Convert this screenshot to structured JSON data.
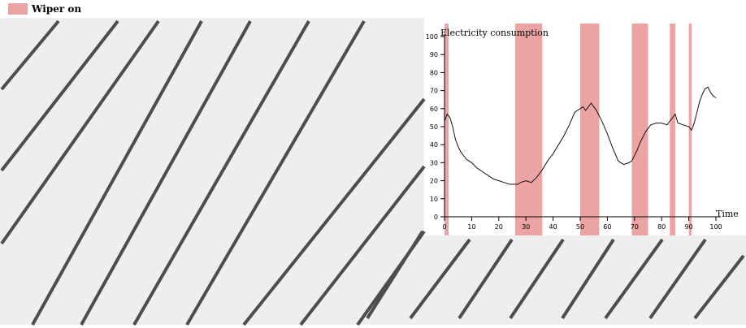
{
  "legend": {
    "label": "Wiper on",
    "color": "#eba3a3"
  },
  "colors": {
    "panel": "#eeeeee",
    "stripe": "#4d4d4d",
    "line": "#111111",
    "axis": "#000000"
  },
  "chart_data": {
    "type": "line",
    "ylabel": "Electricity consumption",
    "xlabel": "Time",
    "xlim": [
      0,
      100
    ],
    "ylim": [
      0,
      100
    ],
    "x_ticks": [
      0,
      10,
      20,
      30,
      40,
      50,
      60,
      70,
      80,
      90,
      100
    ],
    "y_ticks": [
      0,
      10,
      20,
      30,
      40,
      50,
      60,
      70,
      80,
      90,
      100
    ],
    "grid": false,
    "series": [
      {
        "x": [
          0,
          1,
          2,
          3,
          4,
          5,
          6,
          7,
          8,
          9,
          10,
          12,
          14,
          16,
          18,
          20,
          22,
          24,
          26,
          27,
          28,
          30,
          32,
          34,
          36,
          38,
          40,
          42,
          44,
          46,
          48,
          50,
          51,
          52,
          53,
          54,
          55,
          56,
          58,
          60,
          62,
          64,
          66,
          68,
          69,
          70,
          71,
          72,
          74,
          76,
          78,
          80,
          82,
          83,
          84,
          85,
          86,
          88,
          90,
          91,
          92,
          93,
          94,
          95,
          96,
          97,
          98,
          99,
          100
        ],
        "y": [
          53,
          57,
          55,
          50,
          43,
          39,
          36,
          34,
          32,
          31,
          30,
          27,
          25,
          23,
          21,
          20,
          19,
          18,
          18,
          18,
          19,
          20,
          19,
          22,
          26,
          31,
          35,
          40,
          45,
          51,
          58,
          60,
          61,
          59,
          61,
          63,
          61,
          59,
          53,
          46,
          38,
          31,
          29,
          30,
          31,
          34,
          37,
          41,
          47,
          51,
          52,
          52,
          51,
          53,
          55,
          57,
          52,
          51,
          50,
          48,
          52,
          58,
          64,
          68,
          71,
          72,
          69,
          67,
          66
        ]
      }
    ],
    "wiper_on": [
      [
        0,
        1.5
      ],
      [
        26,
        36
      ],
      [
        50,
        57
      ],
      [
        69,
        75
      ],
      [
        83,
        85
      ],
      [
        90,
        91
      ]
    ]
  }
}
